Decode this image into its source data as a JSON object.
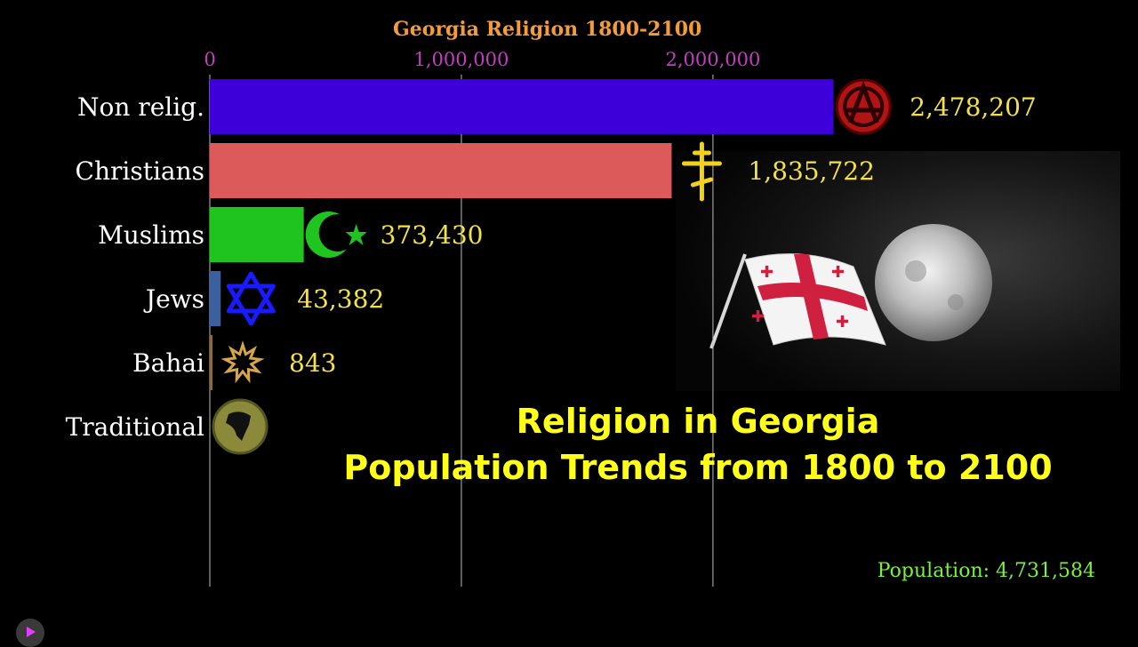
{
  "chart_data": {
    "type": "bar",
    "orientation": "horizontal",
    "title": "Georgia Religion 1800-2100",
    "xlim": [
      0,
      2700000
    ],
    "xticks": [
      0,
      1000000,
      2000000
    ],
    "xtick_labels": [
      "0",
      "1,000,000",
      "2,000,000"
    ],
    "categories": [
      "Non relig.",
      "Christians",
      "Muslims",
      "Jews",
      "Bahai",
      "Traditional"
    ],
    "values": [
      2478207,
      1835722,
      373430,
      43382,
      843,
      0
    ],
    "value_labels": [
      "2,478,207",
      "1,835,722",
      "373,430",
      "43,382",
      "843",
      ""
    ],
    "colors": [
      "#3d00d8",
      "#dc5a5a",
      "#1fc41f",
      "#3c5fa0",
      "#8a6a3a",
      "#6b6b2a"
    ],
    "icons": [
      "anarchy-a-icon",
      "orthodox-cross-icon",
      "crescent-star-icon",
      "star-of-david-icon",
      "bahai-star-icon",
      "africa-emblem-icon"
    ],
    "grid": true
  },
  "overlay": {
    "line1": "Religion in Georgia",
    "line2": "Population Trends from 1800 to 2100"
  },
  "population_label": "Population: 4,731,584",
  "colors": {
    "title": "#f39c3a",
    "tick_labels": "#c23fc2",
    "value_labels": "#f2e14a",
    "category_labels": "#ffffff",
    "overlay_text": "#ffff1a",
    "population": "#7cf041",
    "grid": "#bdbdbd"
  }
}
